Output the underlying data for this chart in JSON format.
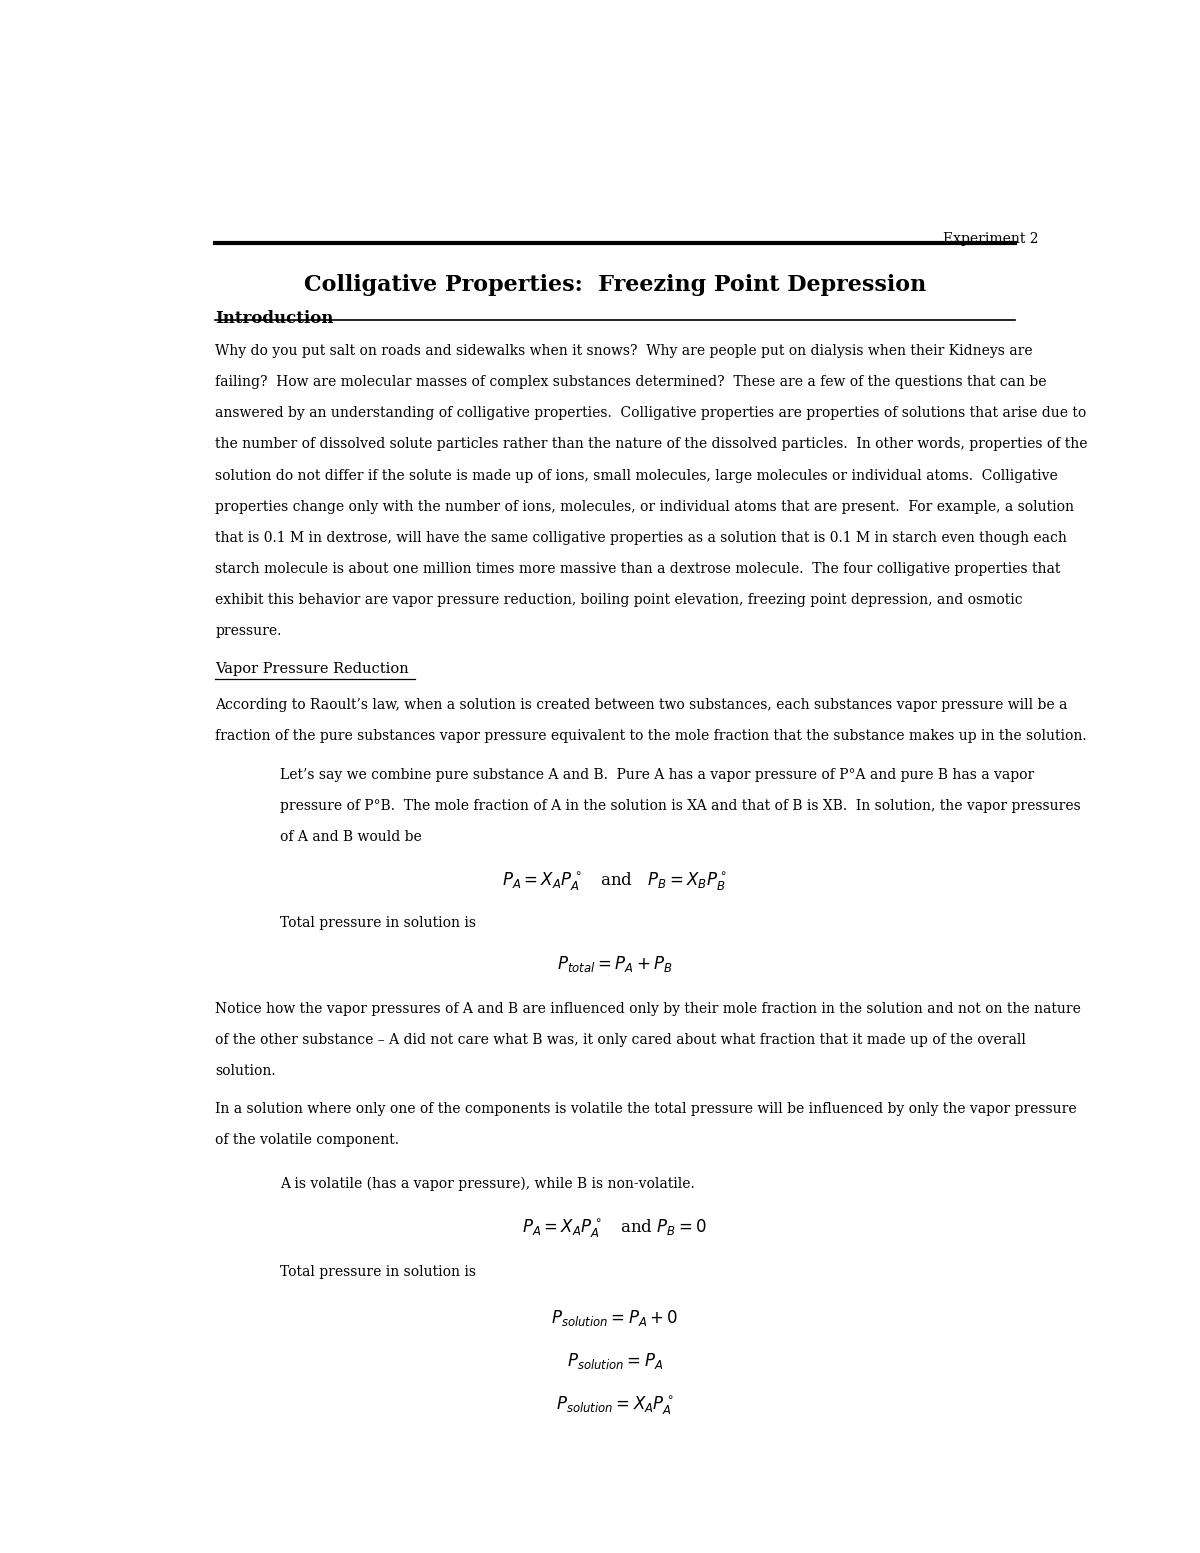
{
  "page_header": "Experiment 2",
  "title": "Colligative Properties:  Freezing Point Depression",
  "section_intro": "Introduction",
  "bg_color": "#ffffff",
  "text_color": "#000000",
  "para1_lines": [
    "Why do you put salt on roads and sidewalks when it snows?  Why are people put on dialysis when their Kidneys are",
    "failing?  How are molecular masses of complex substances determined?  These are a few of the questions that can be",
    "answered by an understanding of colligative properties.  Colligative properties are properties of solutions that arise due to",
    "the number of dissolved solute particles rather than the nature of the dissolved particles.  In other words, properties of the",
    "solution do not differ if the solute is made up of ions, small molecules, large molecules or individual atoms.  Colligative",
    "properties change only with the number of ions, molecules, or individual atoms that are present.  For example, a solution",
    "that is 0.1 M in dextrose, will have the same colligative properties as a solution that is 0.1 M in starch even though each",
    "starch molecule is about one million times more massive than a dextrose molecule.  The four colligative properties that",
    "exhibit this behavior are vapor pressure reduction, boiling point elevation, freezing point depression, and osmotic",
    "pressure."
  ],
  "subsection_vpr": "Vapor Pressure Reduction",
  "para2_lines": [
    "According to Raoult’s law, when a solution is created between two substances, each substances vapor pressure will be a",
    "fraction of the pure substances vapor pressure equivalent to the mole fraction that the substance makes up in the solution."
  ],
  "indented_para1_lines": [
    "Let’s say we combine pure substance A and B.  Pure A has a vapor pressure of P°A and pure B has a vapor",
    "pressure of P°B.  The mole fraction of A in the solution is XA and that of B is XB.  In solution, the vapor pressures",
    "of A and B would be"
  ],
  "eq1": "$P_A = X_AP^\\circ_A$   and   $P_B = X_BP^\\circ_B$",
  "label_total1": "Total pressure in solution is",
  "eq2": "$P_{total} = P_A + P_B$",
  "para3_lines": [
    "Notice how the vapor pressures of A and B are influenced only by their mole fraction in the solution and not on the nature",
    "of the other substance – A did not care what B was, it only cared about what fraction that it made up of the overall",
    "solution."
  ],
  "para4_lines": [
    "In a solution where only one of the components is volatile the total pressure will be influenced by only the vapor pressure",
    "of the volatile component."
  ],
  "indented_para2": "A is volatile (has a vapor pressure), while B is non-volatile.",
  "eq3": "$P_A = X_AP^\\circ_A$   and $P_B = 0$",
  "label_total2": "Total pressure in solution is",
  "eq4": "$P_{solution} = P_A + 0$",
  "eq5": "$P_{solution} = P_A$",
  "eq6": "$P_{solution} = X_AP^\\circ_A$"
}
